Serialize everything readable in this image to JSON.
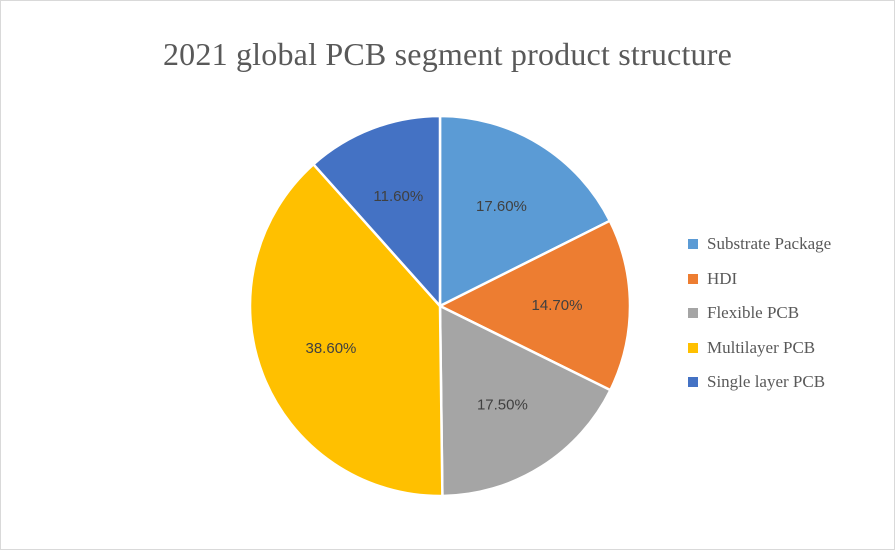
{
  "chart_data": {
    "type": "pie",
    "title": "2021 global PCB segment product structure",
    "slices": [
      {
        "name": "Substrate Package",
        "value": 17.6,
        "label": "17.60%",
        "color": "#5b9bd5"
      },
      {
        "name": "HDI",
        "value": 14.7,
        "label": "14.70%",
        "color": "#ed7d31"
      },
      {
        "name": "Flexible PCB",
        "value": 17.5,
        "label": "17.50%",
        "color": "#a5a5a5"
      },
      {
        "name": "Multilayer PCB",
        "value": 38.6,
        "label": "38.60%",
        "color": "#ffc000"
      },
      {
        "name": "Single layer PCB",
        "value": 11.6,
        "label": "11.60%",
        "color": "#4472c4"
      }
    ],
    "start_angle": "12 o'clock",
    "direction": "clockwise",
    "legend_position": "right"
  }
}
